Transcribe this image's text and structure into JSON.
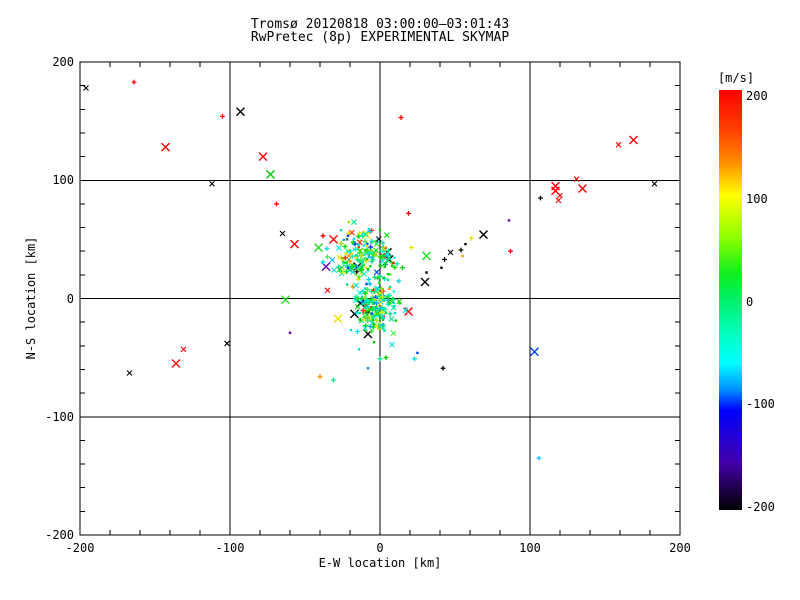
{
  "header": {
    "title_line1": "Tromsø 20120818 03:00:00–03:01:43",
    "title_line2": "RwPretec (8p) EXPERIMENTAL SKYMAP"
  },
  "axes": {
    "x_title": "E-W location [km]",
    "y_title": "N-S location [km]",
    "x_ticks": [
      -200,
      -100,
      0,
      100,
      200
    ],
    "y_ticks": [
      200,
      100,
      0,
      -100,
      -200
    ],
    "x_range": [
      -200,
      200
    ],
    "y_range": [
      -200,
      200
    ],
    "minor_step": 20,
    "grid_lines": [
      -100,
      0,
      100
    ],
    "axis_color": "#000000"
  },
  "colorbar": {
    "title": "[m/s]",
    "ticks": [
      200,
      100,
      0,
      -100,
      -200
    ],
    "range": [
      -200,
      200
    ],
    "stops": [
      {
        "v": 200,
        "c": "#ff0000"
      },
      {
        "v": 160,
        "c": "#ff4400"
      },
      {
        "v": 130,
        "c": "#ff9000"
      },
      {
        "v": 100,
        "c": "#ffff00"
      },
      {
        "v": 60,
        "c": "#8fff00"
      },
      {
        "v": 25,
        "c": "#10ee20"
      },
      {
        "v": 0,
        "c": "#00f06a"
      },
      {
        "v": -35,
        "c": "#00ffc8"
      },
      {
        "v": -60,
        "c": "#00ffff"
      },
      {
        "v": -85,
        "c": "#0090ff"
      },
      {
        "v": -105,
        "c": "#0000ff"
      },
      {
        "v": -155,
        "c": "#4400a8"
      },
      {
        "v": -200,
        "c": "#000000"
      }
    ]
  },
  "chart_data": {
    "type": "scatter",
    "title": "Tromsø 20120818 03:00:00–03:01:43 / RwPretec (8p) EXPERIMENTAL SKYMAP",
    "xlabel": "E-W location [km]",
    "ylabel": "N-S location [km]",
    "xlim": [
      -200,
      200
    ],
    "ylim": [
      -200,
      200
    ],
    "grid": true,
    "color_scale": {
      "label": "[m/s]",
      "min": -200,
      "max": 200
    },
    "points": [
      {
        "x": -196,
        "y": 178,
        "c": "#000000",
        "m": "x"
      },
      {
        "x": -164,
        "y": 183,
        "c": "#ff0000",
        "m": "+"
      },
      {
        "x": -105,
        "y": 154,
        "c": "#ff0000",
        "m": "+"
      },
      {
        "x": -93,
        "y": 158,
        "c": "#000000",
        "m": "X"
      },
      {
        "x": -143,
        "y": 128,
        "c": "#ff0000",
        "m": "X"
      },
      {
        "x": -78,
        "y": 120,
        "c": "#ff0000",
        "m": "X"
      },
      {
        "x": -73,
        "y": 105,
        "c": "#00cc00",
        "m": "X"
      },
      {
        "x": -112,
        "y": 97,
        "c": "#000000",
        "m": "x"
      },
      {
        "x": -69,
        "y": 80,
        "c": "#ff0000",
        "m": "+"
      },
      {
        "x": 14,
        "y": 153,
        "c": "#ff0000",
        "m": "+"
      },
      {
        "x": 19,
        "y": 72,
        "c": "#ff0000",
        "m": "+"
      },
      {
        "x": 159,
        "y": 130,
        "c": "#ff0000",
        "m": "x"
      },
      {
        "x": 169,
        "y": 134,
        "c": "#ff0000",
        "m": "X"
      },
      {
        "x": 131,
        "y": 101,
        "c": "#ff0000",
        "m": "x"
      },
      {
        "x": 117,
        "y": 95,
        "c": "#ff0000",
        "m": "X"
      },
      {
        "x": 117,
        "y": 91,
        "c": "#ff0000",
        "m": "X"
      },
      {
        "x": 120,
        "y": 87,
        "c": "#ff0000",
        "m": "x"
      },
      {
        "x": 135,
        "y": 93,
        "c": "#ff0000",
        "m": "X"
      },
      {
        "x": 119,
        "y": 83,
        "c": "#ff0000",
        "m": "x"
      },
      {
        "x": 107,
        "y": 85,
        "c": "#000000",
        "m": "+"
      },
      {
        "x": 183,
        "y": 97,
        "c": "#000000",
        "m": "x"
      },
      {
        "x": 86,
        "y": 66,
        "c": "#6a00a8",
        "m": "."
      },
      {
        "x": 87,
        "y": 40,
        "c": "#ff0000",
        "m": "+"
      },
      {
        "x": 30,
        "y": 14,
        "c": "#000000",
        "m": "X"
      },
      {
        "x": 31,
        "y": 22,
        "c": "#000000",
        "m": "."
      },
      {
        "x": 41,
        "y": 26,
        "c": "#000000",
        "m": "."
      },
      {
        "x": 43,
        "y": 33,
        "c": "#000000",
        "m": "+"
      },
      {
        "x": 47,
        "y": 39,
        "c": "#000000",
        "m": "x"
      },
      {
        "x": 55,
        "y": 36,
        "c": "#ff9500",
        "m": "."
      },
      {
        "x": 54,
        "y": 41,
        "c": "#000000",
        "m": "+"
      },
      {
        "x": 57,
        "y": 46,
        "c": "#000000",
        "m": "."
      },
      {
        "x": 61,
        "y": 51,
        "c": "#e8e800",
        "m": "+"
      },
      {
        "x": 69,
        "y": 54,
        "c": "#000000",
        "m": "X"
      },
      {
        "x": 31,
        "y": 36,
        "c": "#22dd22",
        "m": "X"
      },
      {
        "x": 21,
        "y": 43,
        "c": "#e8e800",
        "m": "+"
      },
      {
        "x": 5,
        "y": 39,
        "c": "#000000",
        "m": "X"
      },
      {
        "x": 6,
        "y": 33,
        "c": "#000000",
        "m": "X"
      },
      {
        "x": -15,
        "y": 27,
        "c": "#000000",
        "m": "X"
      },
      {
        "x": 9,
        "y": 30,
        "c": "#ff0000",
        "m": "."
      },
      {
        "x": 15,
        "y": 26,
        "c": "#00cc00",
        "m": "+"
      },
      {
        "x": -57,
        "y": 46,
        "c": "#ff0000",
        "m": "X"
      },
      {
        "x": -38,
        "y": 53,
        "c": "#ff0000",
        "m": "+"
      },
      {
        "x": -31,
        "y": 50,
        "c": "#ff0000",
        "m": "X"
      },
      {
        "x": -41,
        "y": 43,
        "c": "#22dd22",
        "m": "X"
      },
      {
        "x": -22,
        "y": 50,
        "c": "#0044ff",
        "m": "."
      },
      {
        "x": -36,
        "y": 27,
        "c": "#6a00a8",
        "m": "X"
      },
      {
        "x": -38,
        "y": 31,
        "c": "#00dede",
        "m": "+"
      },
      {
        "x": -35,
        "y": 7,
        "c": "#ff0000",
        "m": "x"
      },
      {
        "x": -18,
        "y": 10,
        "c": "#ff9500",
        "m": "+"
      },
      {
        "x": -63,
        "y": -1,
        "c": "#22dd22",
        "m": "X"
      },
      {
        "x": -28,
        "y": -17,
        "c": "#e8e800",
        "m": "X"
      },
      {
        "x": -17,
        "y": -13,
        "c": "#000000",
        "m": "X"
      },
      {
        "x": -60,
        "y": -29,
        "c": "#6a00a8",
        "m": "."
      },
      {
        "x": -65,
        "y": 55,
        "c": "#000000",
        "m": "x"
      },
      {
        "x": -9,
        "y": 54,
        "c": "#e8e800",
        "m": "X"
      },
      {
        "x": -11,
        "y": 56,
        "c": "#e8e800",
        "m": "."
      },
      {
        "x": -8,
        "y": 56,
        "c": "#e8e800",
        "m": "."
      },
      {
        "x": 0,
        "y": 58,
        "c": "#00cc00",
        "m": "."
      },
      {
        "x": -131,
        "y": -43,
        "c": "#ff0000",
        "m": "x"
      },
      {
        "x": -136,
        "y": -55,
        "c": "#ff0000",
        "m": "X"
      },
      {
        "x": -102,
        "y": -38,
        "c": "#000000",
        "m": "x"
      },
      {
        "x": -167,
        "y": -63,
        "c": "#000000",
        "m": "x"
      },
      {
        "x": -15,
        "y": -28,
        "c": "#00dede",
        "m": "+"
      },
      {
        "x": -8,
        "y": -30,
        "c": "#000000",
        "m": "X"
      },
      {
        "x": -4,
        "y": -37,
        "c": "#00cc00",
        "m": "."
      },
      {
        "x": 8,
        "y": -39,
        "c": "#00dede",
        "m": "x"
      },
      {
        "x": -14,
        "y": -43,
        "c": "#00dede",
        "m": "."
      },
      {
        "x": 25,
        "y": -46,
        "c": "#0044ff",
        "m": "."
      },
      {
        "x": 4,
        "y": -50,
        "c": "#00cc00",
        "m": "+"
      },
      {
        "x": 0,
        "y": -51,
        "c": "#00e88c",
        "m": "+"
      },
      {
        "x": 23,
        "y": -51,
        "c": "#00dede",
        "m": "+"
      },
      {
        "x": -8,
        "y": -59,
        "c": "#0090ff",
        "m": "."
      },
      {
        "x": 42,
        "y": -59,
        "c": "#000000",
        "m": "+"
      },
      {
        "x": -40,
        "y": -66,
        "c": "#ff9500",
        "m": "+"
      },
      {
        "x": -31,
        "y": -69,
        "c": "#00e88c",
        "m": "+"
      },
      {
        "x": 103,
        "y": -45,
        "c": "#0044ff",
        "m": "X"
      },
      {
        "x": 106,
        "y": -135,
        "c": "#00c8ff",
        "m": "+"
      },
      {
        "x": 19,
        "y": -11,
        "c": "#ff0000",
        "m": "X"
      },
      {
        "x": 17,
        "y": -10,
        "c": "#00dede",
        "m": "x"
      },
      {
        "x": -13,
        "y": -4,
        "c": "#000000",
        "m": "X"
      },
      {
        "x": 2,
        "y": -25,
        "c": "#00dede",
        "m": "+"
      }
    ],
    "clusters": [
      {
        "name": "upper-echo-cluster",
        "cx": -12,
        "cy": 36,
        "sx": 9,
        "sy": 11,
        "n": 180,
        "seed": 42
      },
      {
        "name": "lower-echo-cluster",
        "cx": -3,
        "cy": -6,
        "sx": 7,
        "sy": 9,
        "n": 180,
        "seed": 1337
      }
    ],
    "cluster_palette": [
      {
        "c": "#00e88c",
        "w": 0.24
      },
      {
        "c": "#00d800",
        "w": 0.2
      },
      {
        "c": "#00dede",
        "w": 0.16
      },
      {
        "c": "#40ee40",
        "w": 0.08
      },
      {
        "c": "#e8e800",
        "w": 0.08
      },
      {
        "c": "#9de000",
        "w": 0.05
      },
      {
        "c": "#00b4ff",
        "w": 0.05
      },
      {
        "c": "#0040ff",
        "w": 0.03
      },
      {
        "c": "#ff2a00",
        "w": 0.04
      },
      {
        "c": "#ff9500",
        "w": 0.02
      },
      {
        "c": "#00ffc8",
        "w": 0.04
      },
      {
        "c": "#101010",
        "w": 0.01
      }
    ]
  }
}
